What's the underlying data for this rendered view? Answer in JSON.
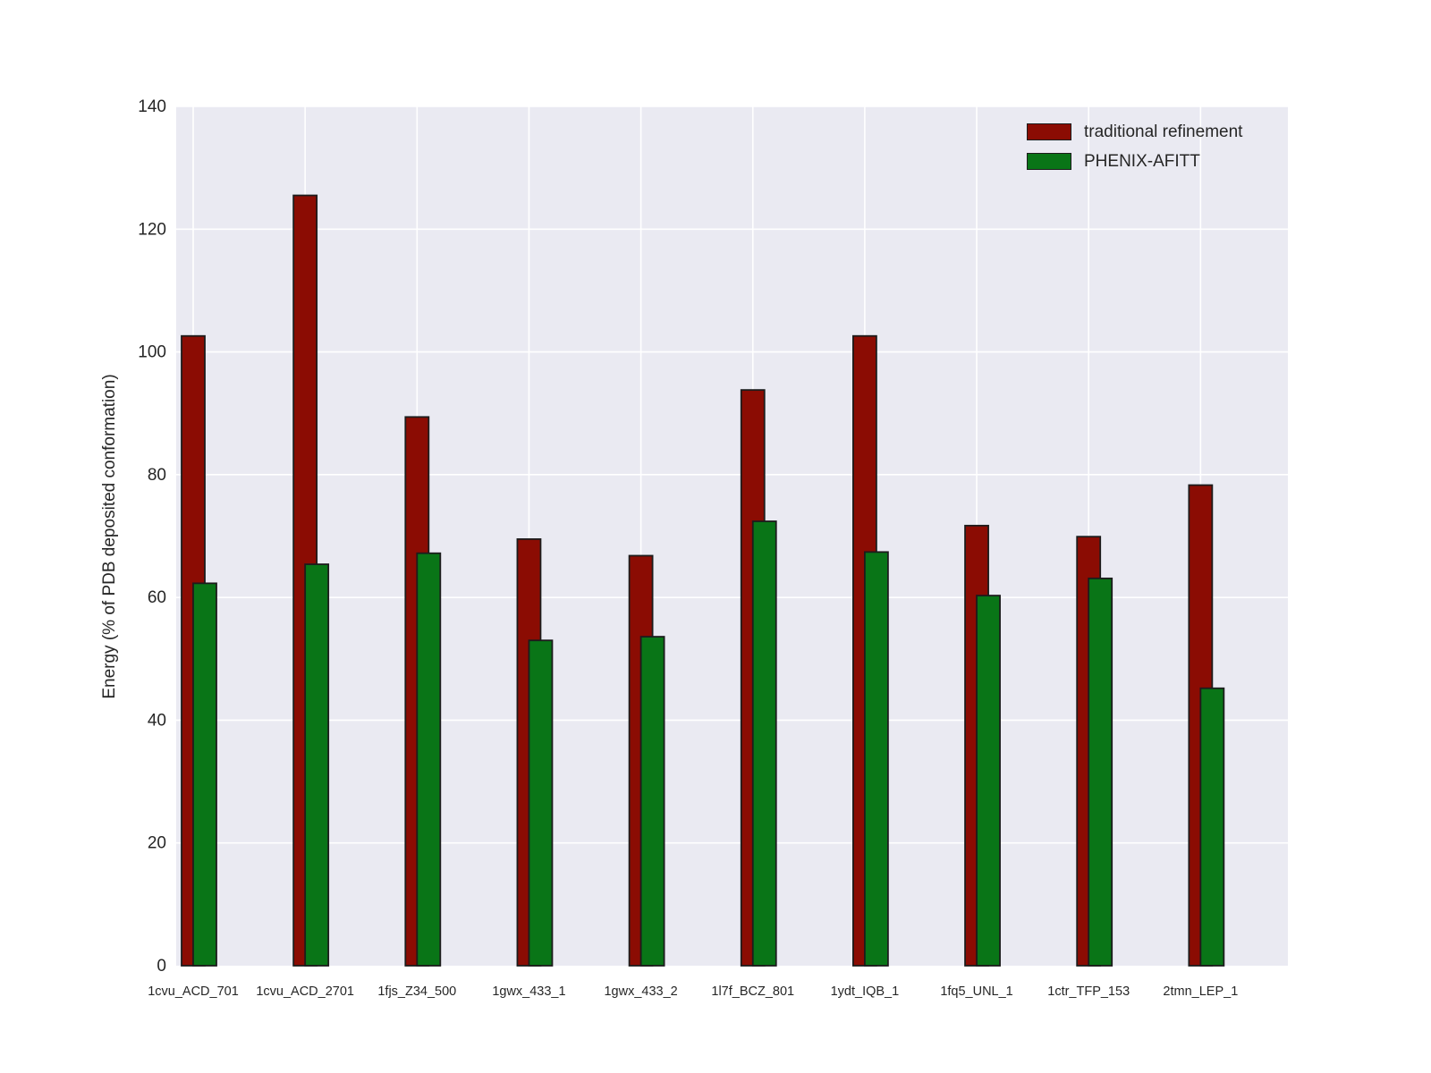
{
  "chart_data": {
    "type": "bar",
    "categories": [
      "1cvu_ACD_701",
      "1cvu_ACD_2701",
      "1fjs_Z34_500",
      "1gwx_433_1",
      "1gwx_433_2",
      "1l7f_BCZ_801",
      "1ydt_IQB_1",
      "1fq5_UNL_1",
      "1ctr_TFP_153",
      "2tmn_LEP_1"
    ],
    "series": [
      {
        "name": "traditional refinement",
        "color": "#8B0C03",
        "values": [
          102.6,
          125.5,
          89.4,
          69.5,
          66.8,
          93.8,
          102.6,
          71.7,
          69.9,
          78.3
        ]
      },
      {
        "name": "PHENIX-AFITT",
        "color": "#097517",
        "values": [
          62.3,
          65.4,
          67.2,
          53.0,
          53.6,
          72.4,
          67.4,
          60.3,
          63.1,
          45.2
        ]
      }
    ],
    "title": "",
    "xlabel": "",
    "ylabel": "Energy (% of PDB deposited conformation)",
    "ylim": [
      0,
      140
    ],
    "yticks": [
      0,
      20,
      40,
      60,
      80,
      100,
      120,
      140
    ],
    "grid": true,
    "legend_position": "upper right",
    "style": {
      "plot_background": "#EAEAF2",
      "gridline_color": "#FFFFFF",
      "bar_edge_color": "#1C1C1C",
      "tick_label_color": "#262626"
    }
  }
}
